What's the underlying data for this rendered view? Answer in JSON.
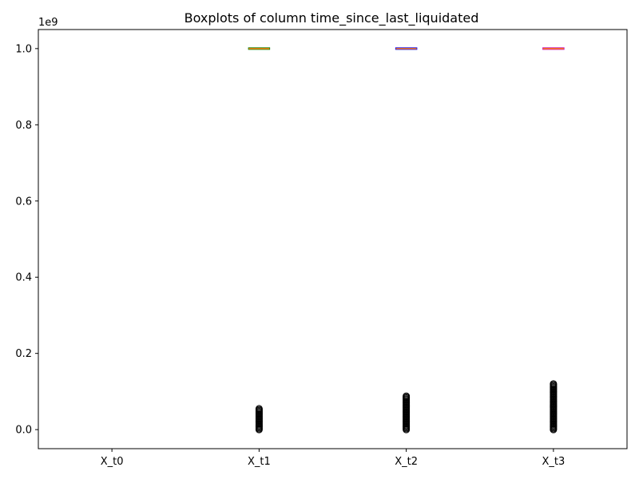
{
  "chart_data": {
    "type": "box",
    "title": "Boxplots of column time_since_last_liquidated",
    "xlabel": "",
    "ylabel": "",
    "y_scale_label": "1e9",
    "ylim": [
      -0.05,
      1.05
    ],
    "yticks": [
      {
        "value": 0.0,
        "label": "0.0"
      },
      {
        "value": 0.2,
        "label": "0.2"
      },
      {
        "value": 0.4,
        "label": "0.4"
      },
      {
        "value": 0.6,
        "label": "0.6"
      },
      {
        "value": 0.8,
        "label": "0.8"
      },
      {
        "value": 1.0,
        "label": "1.0"
      }
    ],
    "categories": [
      "X_t0",
      "X_t1",
      "X_t2",
      "X_t3"
    ],
    "grid": false,
    "series": [
      {
        "category": "X_t0",
        "color": "",
        "q1": null,
        "median": null,
        "q3": null,
        "whisker_low": null,
        "whisker_high": null,
        "outlier_range": null
      },
      {
        "category": "X_t1",
        "color": "#008000",
        "q1": 1.0,
        "median": 1.0,
        "q3": 1.0,
        "whisker_low": 1.0,
        "whisker_high": 1.0,
        "outlier_range": [
          0.0,
          0.055
        ]
      },
      {
        "category": "X_t2",
        "color": "#0000ff",
        "q1": 1.0,
        "median": 1.0,
        "q3": 1.0,
        "whisker_low": 1.0,
        "whisker_high": 1.0,
        "outlier_range": [
          0.0,
          0.088
        ]
      },
      {
        "category": "X_t3",
        "color": "#bf00bf",
        "q1": 1.0,
        "median": 1.0,
        "q3": 1.0,
        "whisker_low": 1.0,
        "whisker_high": 1.0,
        "outlier_range": [
          0.0,
          0.12
        ]
      }
    ],
    "median_color": "#ff7f0e"
  }
}
